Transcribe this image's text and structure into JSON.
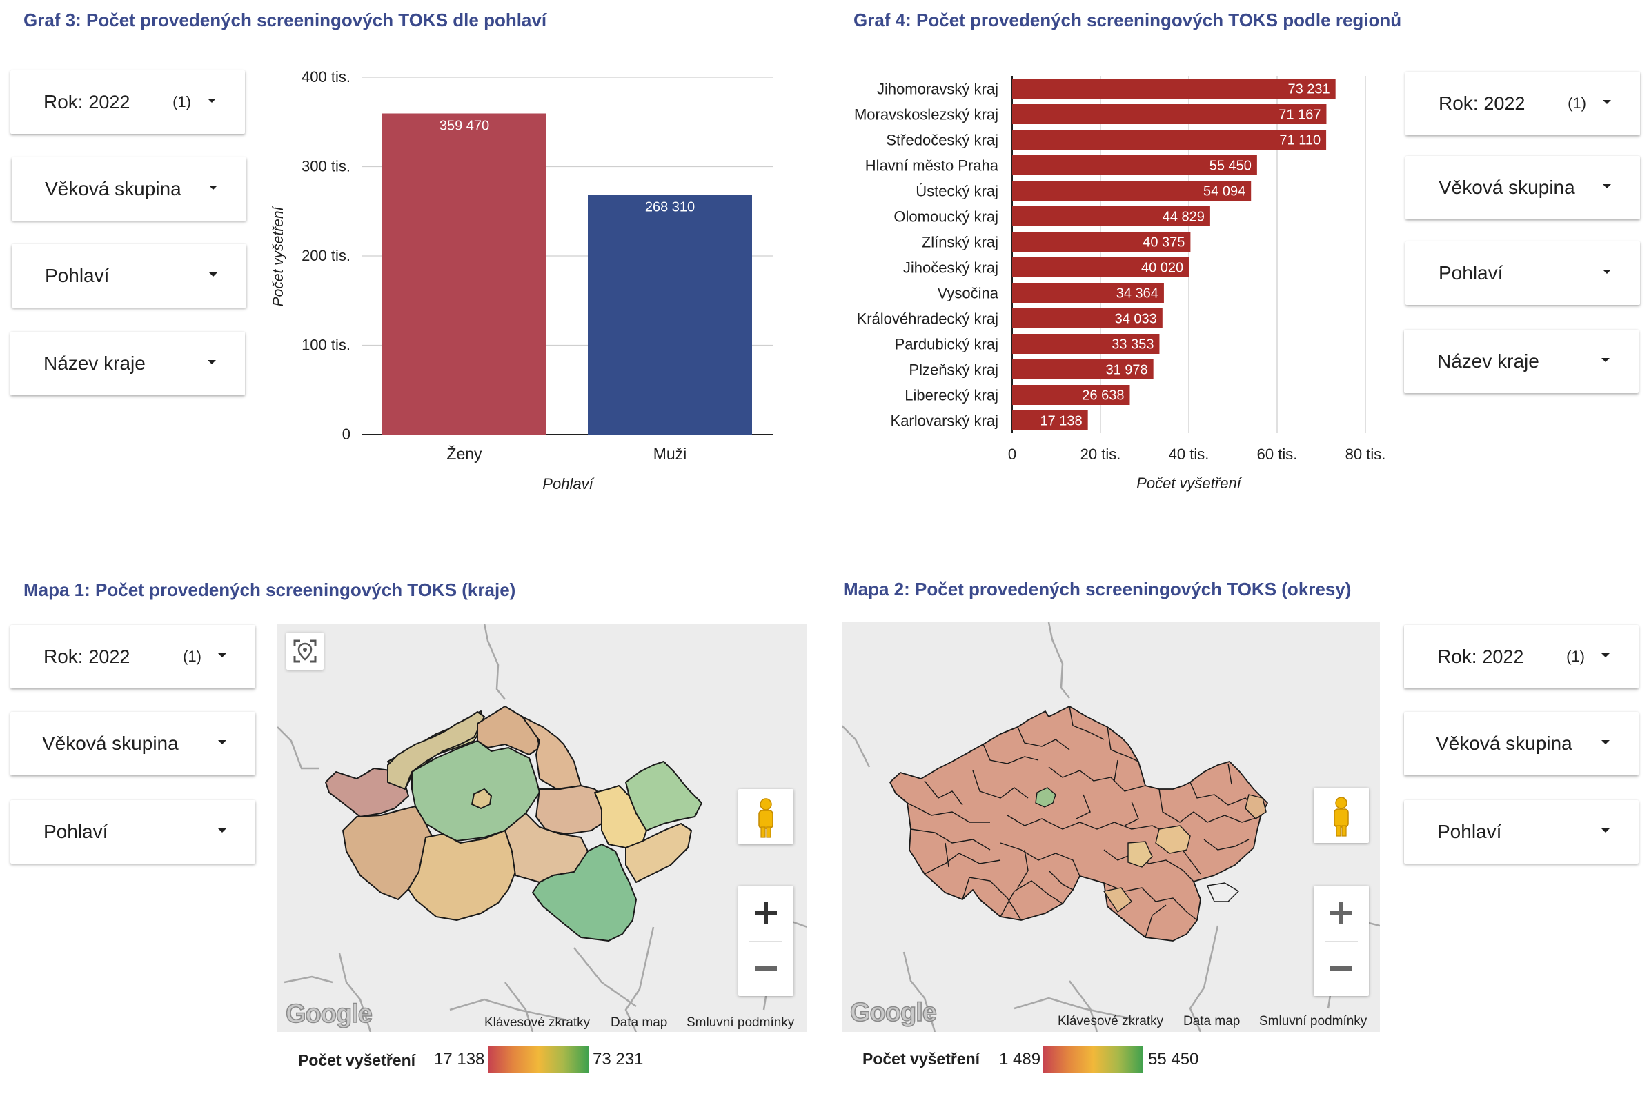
{
  "graf3": {
    "title": "Graf 3: Počet provedených screeningových TOKS dle pohlaví",
    "filters": [
      {
        "label": "Rok",
        "value": "2022",
        "count": "(1)"
      },
      {
        "label": "Věková skupina"
      },
      {
        "label": "Pohlaví"
      },
      {
        "label": "Název kraje"
      }
    ]
  },
  "graf4": {
    "title": "Graf 4: Počet provedených screeningových TOKS podle regionů",
    "filters": [
      {
        "label": "Rok",
        "value": "2022",
        "count": "(1)"
      },
      {
        "label": "Věková skupina"
      },
      {
        "label": "Pohlaví"
      },
      {
        "label": "Název kraje"
      }
    ]
  },
  "mapa1": {
    "title": "Mapa 1: Počet provedených screeningových TOKS (kraje)",
    "filters": [
      {
        "label": "Rok",
        "value": "2022",
        "count": "(1)"
      },
      {
        "label": "Věková skupina"
      },
      {
        "label": "Pohlaví"
      }
    ],
    "footer": {
      "logo": "Google",
      "shortcuts": "Klávesové zkratky",
      "data": "Data map",
      "terms": "Smluvní podmínky"
    },
    "legend": {
      "title": "Počet vyšetření",
      "min": "17 138",
      "max": "73 231"
    }
  },
  "mapa2": {
    "title": "Mapa 2: Počet provedených screeningových TOKS (okresy)",
    "filters": [
      {
        "label": "Rok",
        "value": "2022",
        "count": "(1)"
      },
      {
        "label": "Věková skupina"
      },
      {
        "label": "Pohlaví"
      }
    ],
    "footer": {
      "logo": "Google",
      "shortcuts": "Klávesové zkratky",
      "data": "Data map",
      "terms": "Smluvní podmínky"
    },
    "legend": {
      "title": "Počet vyšetření",
      "min": "1 489",
      "max": "55 450"
    }
  },
  "colors": {
    "title": "#3b4a8c",
    "zeny": "#b04652",
    "muzi": "#354d8a",
    "region_bar": "#a82b28"
  },
  "chart_data": [
    {
      "type": "bar",
      "categories": [
        "Ženy",
        "Muži"
      ],
      "values": [
        359470,
        268310
      ],
      "value_labels": [
        "359 470",
        "268 310"
      ],
      "xlabel": "Pohlaví",
      "ylabel": "Počet vyšetření",
      "ylim": [
        0,
        400000
      ],
      "yticks": [
        0,
        100000,
        200000,
        300000,
        400000
      ],
      "ytick_labels": [
        "0",
        "100 tis.",
        "200 tis.",
        "300 tis.",
        "400 tis."
      ]
    },
    {
      "type": "bar",
      "orientation": "horizontal",
      "categories": [
        "Jihomoravský kraj",
        "Moravskoslezský kraj",
        "Středočeský kraj",
        "Hlavní město Praha",
        "Ústecký kraj",
        "Olomoucký kraj",
        "Zlínský kraj",
        "Jihočeský kraj",
        "Vysočina",
        "Královéhradecký kraj",
        "Pardubický kraj",
        "Plzeňský kraj",
        "Liberecký kraj",
        "Karlovarský kraj"
      ],
      "values": [
        73231,
        71167,
        71110,
        55450,
        54094,
        44829,
        40375,
        40020,
        34364,
        34033,
        33353,
        31978,
        26638,
        17138
      ],
      "value_labels": [
        "73 231",
        "71 167",
        "71 110",
        "55 450",
        "54 094",
        "44 829",
        "40 375",
        "40 020",
        "34 364",
        "34 033",
        "33 353",
        "31 978",
        "26 638",
        "17 138"
      ],
      "xlabel": "Počet vyšetření",
      "xlim": [
        0,
        80000
      ],
      "xticks": [
        0,
        20000,
        40000,
        60000,
        80000
      ],
      "xtick_labels": [
        "0",
        "20 tis.",
        "40 tis.",
        "60 tis.",
        "80 tis."
      ]
    }
  ]
}
